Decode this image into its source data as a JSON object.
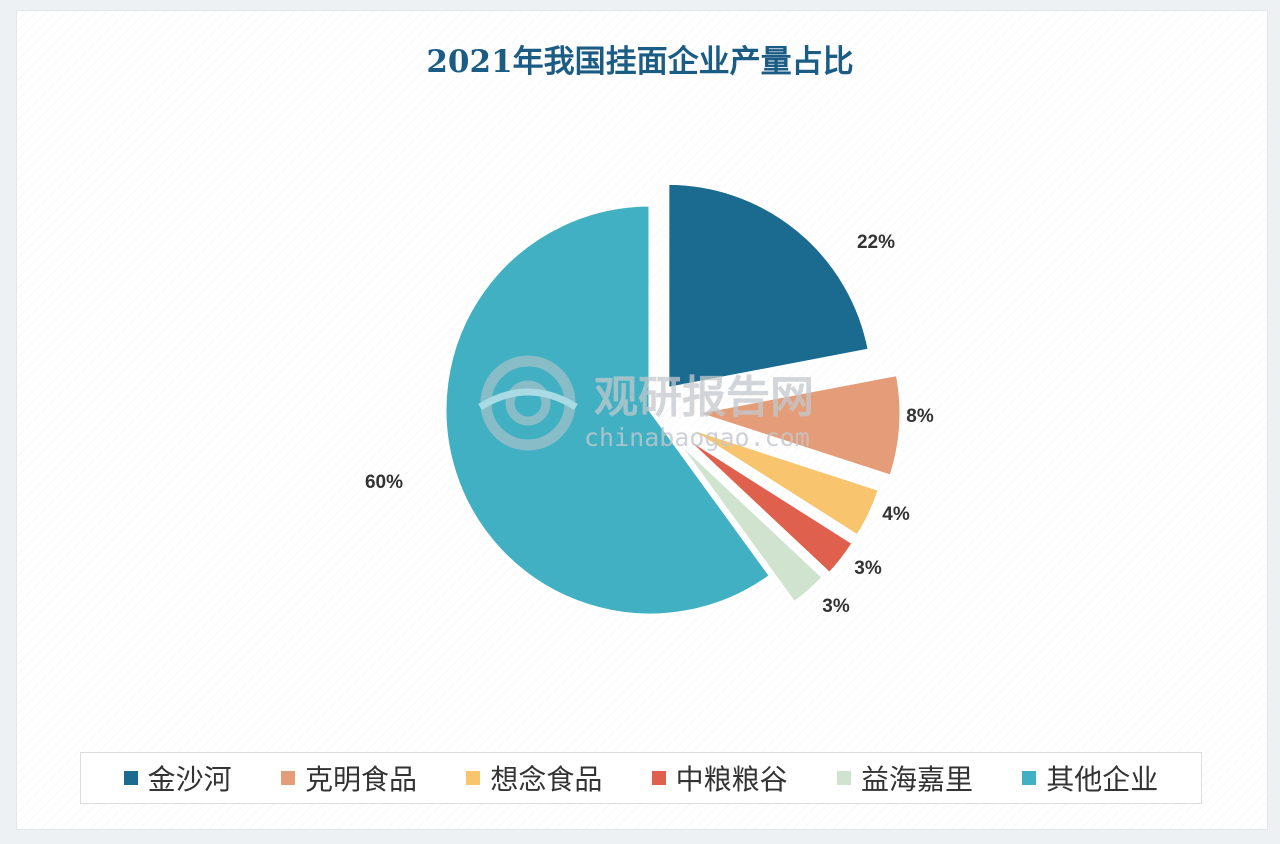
{
  "chart_data": {
    "type": "pie",
    "title": "2021年我国挂面企业产量占比",
    "categories": [
      "金沙河",
      "克明食品",
      "想念食品",
      "中粮粮谷",
      "益海嘉里",
      "其他企业"
    ],
    "values": [
      22,
      8,
      4,
      3,
      3,
      60
    ],
    "value_labels": [
      "22%",
      "8%",
      "4%",
      "3%",
      "3%",
      "60%"
    ],
    "colors": [
      "#1b6a90",
      "#e59c78",
      "#f8c46e",
      "#e0604e",
      "#cfe3cf",
      "#41b0c3"
    ],
    "legend_position": "bottom",
    "exploded": true
  },
  "watermark": {
    "text": "观研报告网",
    "url": "chinabaogao.com"
  }
}
